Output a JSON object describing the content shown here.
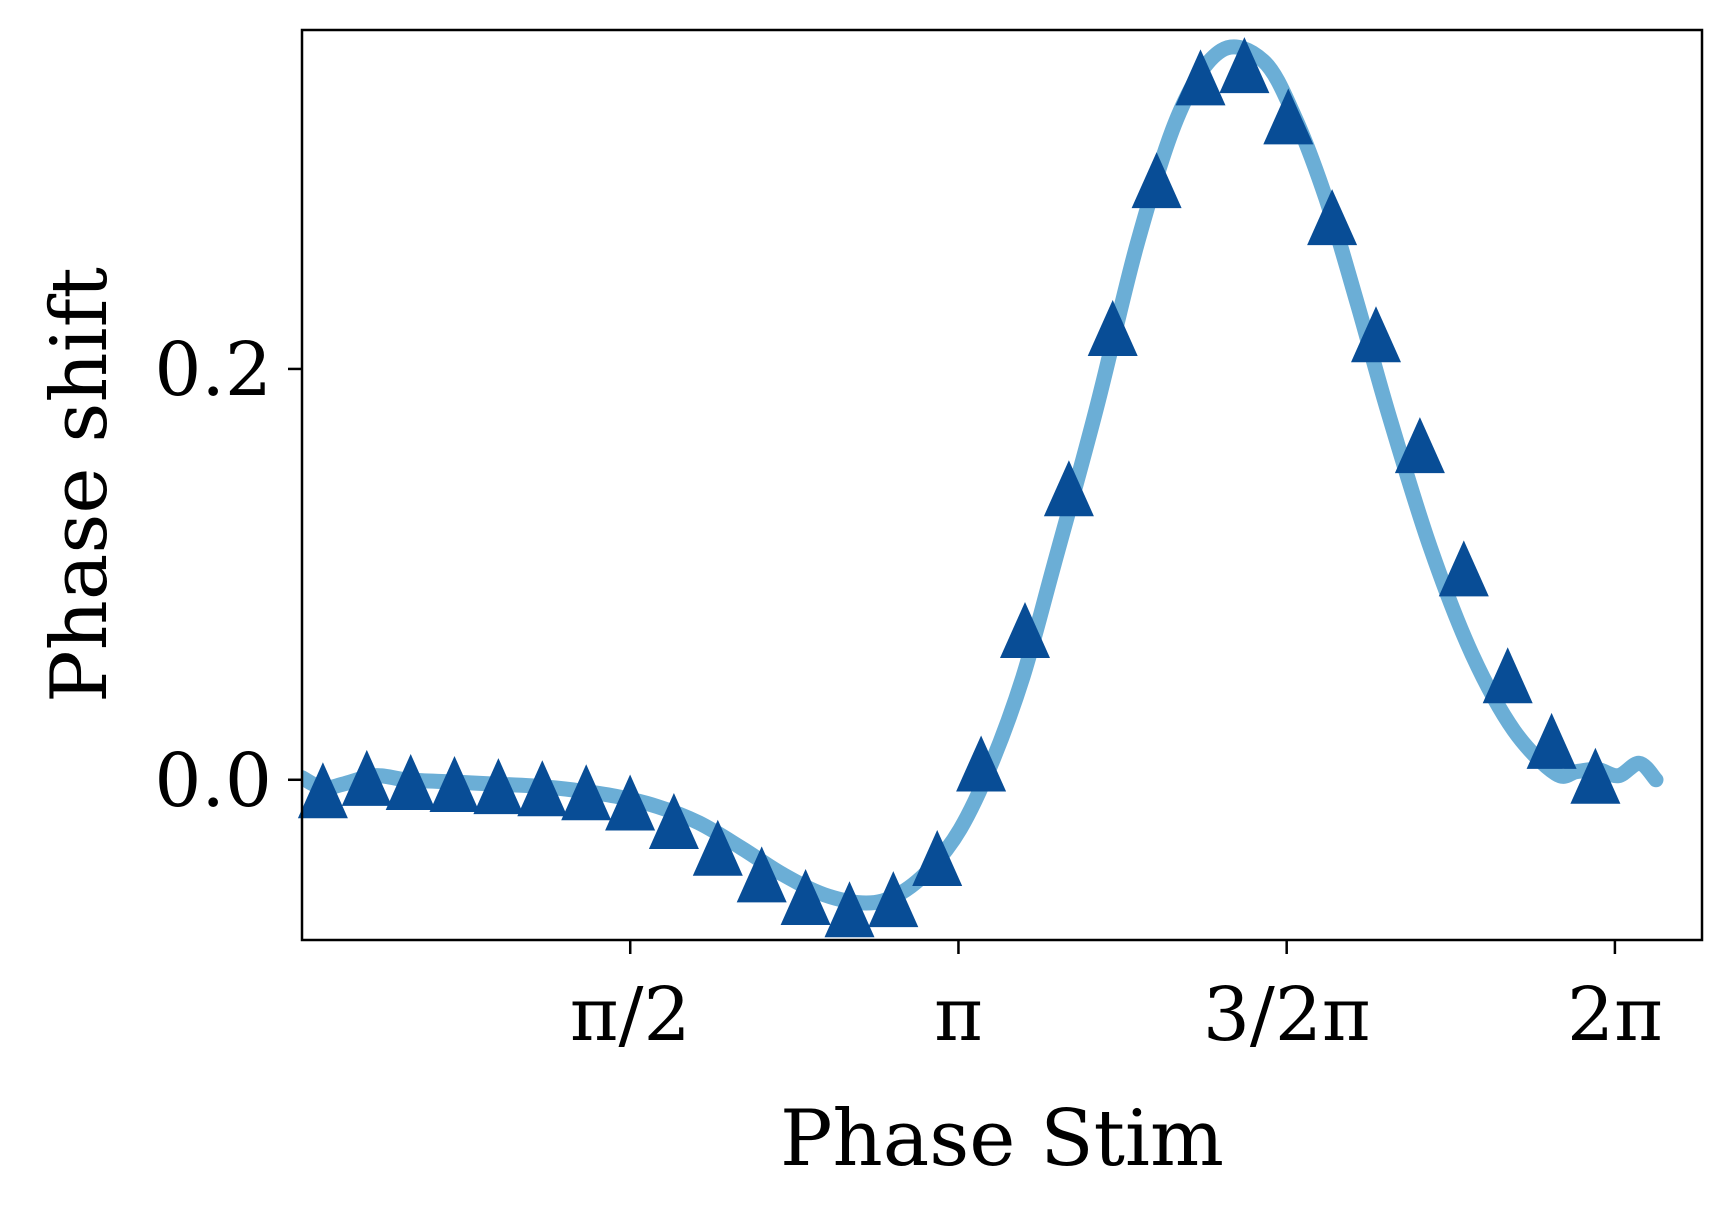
{
  "chart_data": {
    "type": "line",
    "xlabel": "Phase Stim",
    "ylabel": "Phase shift",
    "xlim": [
      0.0,
      6.7
    ],
    "ylim": [
      -0.078,
      0.365
    ],
    "x_ticks": [
      {
        "value": 1.5708,
        "label": "π/2"
      },
      {
        "value": 3.1416,
        "label": "π"
      },
      {
        "value": 4.7124,
        "label": "3/2π"
      },
      {
        "value": 6.2832,
        "label": "2π"
      }
    ],
    "y_ticks": [
      {
        "value": 0.0,
        "label": "0.0"
      },
      {
        "value": 0.2,
        "label": "0.2"
      }
    ],
    "colors": {
      "curve": "#6baed6",
      "markers": "#084d96",
      "axes": "#000000"
    },
    "series": [
      {
        "style": "line",
        "x": [
          0.0,
          0.1,
          0.2,
          0.35,
          0.5,
          0.7,
          0.9,
          1.1,
          1.3,
          1.5,
          1.7,
          1.9,
          2.1,
          2.3,
          2.5,
          2.7,
          2.85,
          3.0,
          3.15,
          3.3,
          3.45,
          3.6,
          3.8,
          4.0,
          4.2,
          4.4,
          4.6,
          4.75,
          4.9,
          5.05,
          5.2,
          5.4,
          5.6,
          5.8,
          6.0,
          6.1,
          6.2,
          6.3,
          6.4,
          6.48
        ],
        "y": [
          0.001,
          -0.004,
          -0.002,
          0.002,
          0.0,
          -0.001,
          -0.002,
          -0.003,
          -0.005,
          -0.008,
          -0.013,
          -0.021,
          -0.033,
          -0.046,
          -0.056,
          -0.06,
          -0.056,
          -0.044,
          -0.024,
          0.008,
          0.05,
          0.105,
          0.18,
          0.262,
          0.325,
          0.355,
          0.35,
          0.323,
          0.283,
          0.232,
          0.178,
          0.113,
          0.061,
          0.024,
          0.003,
          0.004,
          0.005,
          0.002,
          0.008,
          0.0
        ]
      },
      {
        "style": "triangle-markers",
        "x": [
          0.1,
          0.31,
          0.52,
          0.73,
          0.94,
          1.15,
          1.36,
          1.57,
          1.78,
          1.99,
          2.2,
          2.41,
          2.62,
          2.83,
          3.04,
          3.25,
          3.46,
          3.67,
          3.88,
          4.09,
          4.3,
          4.51,
          4.72,
          4.93,
          5.14,
          5.35,
          5.56,
          5.77,
          5.98,
          6.19
        ],
        "y": [
          -0.008,
          -0.002,
          -0.004,
          -0.005,
          -0.006,
          -0.007,
          -0.009,
          -0.014,
          -0.023,
          -0.036,
          -0.049,
          -0.06,
          -0.066,
          -0.061,
          -0.041,
          0.005,
          0.07,
          0.139,
          0.217,
          0.289,
          0.339,
          0.345,
          0.32,
          0.271,
          0.214,
          0.16,
          0.1,
          0.048,
          0.016,
          -0.001
        ]
      }
    ]
  }
}
